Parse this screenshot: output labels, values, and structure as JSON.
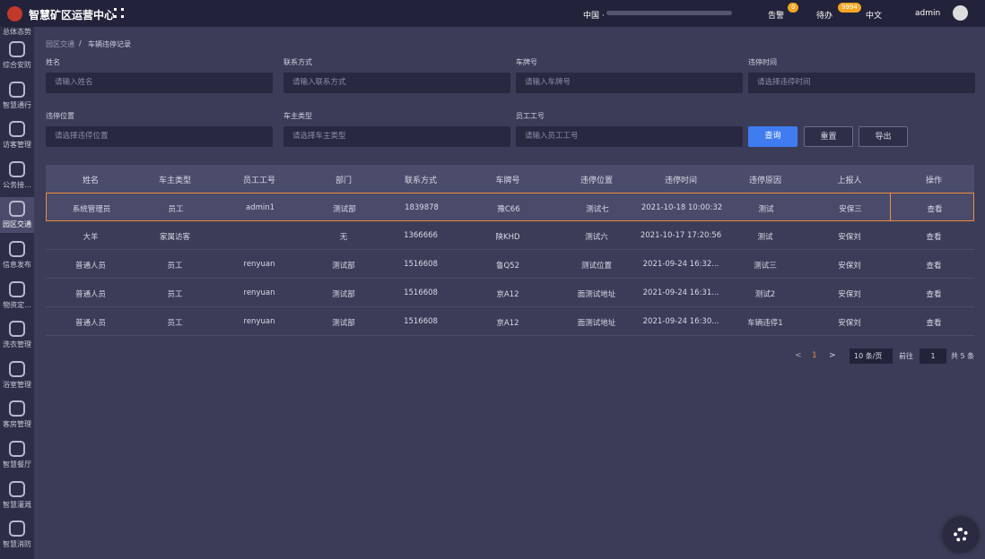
{
  "header": {
    "title": "智慧矿区运营中心",
    "location": "中国 ·",
    "alarm": "告警",
    "alarm_badge": "0",
    "todo": "待办",
    "todo_badge": "9994",
    "language": "中文",
    "user": "admin"
  },
  "sidebar": {
    "items": [
      "总体态势",
      "综合安防",
      "智慧通行",
      "访客管理",
      "公务接...",
      "园区交通",
      "信息发布",
      "物资定...",
      "洗衣管理",
      "浴室管理",
      "客房管理",
      "智慧餐厅",
      "智慧灌溉",
      "智慧消防"
    ]
  },
  "breadcrumb": {
    "parent": "园区交通",
    "separator": "/",
    "current": "车辆违停记录"
  },
  "filters": [
    {
      "label": "姓名",
      "placeholder": "请输入姓名"
    },
    {
      "label": "联系方式",
      "placeholder": "请输入联系方式"
    },
    {
      "label": "车牌号",
      "placeholder": "请输入车牌号"
    },
    {
      "label": "违停时间",
      "placeholder": "请选择违停时间"
    },
    {
      "label": "违停位置",
      "placeholder": "请选择违停位置"
    },
    {
      "label": "车主类型",
      "placeholder": "请选择车主类型"
    },
    {
      "label": "员工工号",
      "placeholder": "请输入员工工号"
    }
  ],
  "buttons": {
    "search": "查询",
    "reset": "重置",
    "export": "导出"
  },
  "table": {
    "columns": [
      "姓名",
      "车主类型",
      "员工工号",
      "部门",
      "联系方式",
      "车牌号",
      "违停位置",
      "违停时间",
      "违停原因",
      "上报人",
      "操作"
    ],
    "rows": [
      [
        "系统管理员",
        "员工",
        "admin1",
        "测试部",
        "1839878",
        "豫C66",
        "测试七",
        "2021-10-18 10:00:32",
        "测试",
        "安保三",
        "查看"
      ],
      [
        "大羊",
        "家属访客",
        null,
        "无",
        "1366666",
        "陕KHD",
        "测试六",
        "2021-10-17 17:20:56",
        "测试",
        "安保刘",
        "查看"
      ],
      [
        "普通人员",
        "员工",
        "renyuan",
        "测试部",
        "1516608",
        "鲁Q52",
        "测试位置",
        "2021-09-24 16:32...",
        "测试三",
        "安保刘",
        "查看"
      ],
      [
        "普通人员",
        "员工",
        "renyuan",
        "测试部",
        "1516608",
        "京A12",
        "面测试地址",
        "2021-09-24 16:31...",
        "测试2",
        "安保刘",
        "查看"
      ],
      [
        "普通人员",
        "员工",
        "renyuan",
        "测试部",
        "1516608",
        "京A12",
        "面测试地址",
        "2021-09-24 16:30...",
        "车辆违停1",
        "安保刘",
        "查看"
      ]
    ]
  },
  "pagination": {
    "prev": "<",
    "page": "1",
    "next": ">",
    "page_size": "10 条/页",
    "goto": "前往",
    "goto_value": "1",
    "total": "共 5 条"
  }
}
